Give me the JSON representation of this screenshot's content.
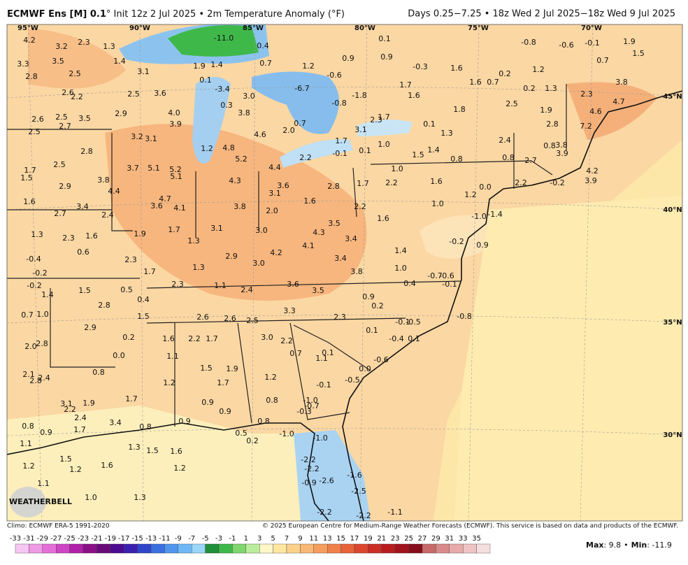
{
  "header": {
    "title_bold": "ECMWF Ens [M] 0.1",
    "title_rest": "° Init 12z 2 Jul 2025 • 2m Temperature Anomaly (°F)",
    "valid": "Days 0.25−7.25 • 18z Wed 2 Jul 2025−18z Wed 9 Jul 2025"
  },
  "map": {
    "lon_labels": [
      "95°W",
      "90°W",
      "85°W",
      "80°W",
      "75°W",
      "70°W"
    ],
    "lat_labels": [
      "45°N",
      "40°N",
      "35°N",
      "30°N"
    ],
    "logo": "WEATHERBELL",
    "values": [
      "4.2",
      "3.2",
      "2.3",
      "1.3",
      "3.3",
      "3.5",
      "1.4",
      "2.8",
      "2.5",
      "3.1",
      "2.6",
      "2.2",
      "2.5",
      "3.6",
      "1.9",
      "1.4",
      "0.1",
      "-3.4",
      "3.0",
      "-6.7",
      "1.2",
      "-0.6",
      "-1.8",
      "-0.8",
      "2.6",
      "2.5",
      "2.7",
      "3.5",
      "2.5",
      "2.9",
      "4.0",
      "3.9",
      "0.3",
      "3.8",
      "4.6",
      "2.0",
      "0.7",
      "0.9",
      "0.9",
      "-0.3",
      "1.6",
      "1.7",
      "1.6",
      "1.6",
      "0.7",
      "0.2",
      "1.2",
      "0.2",
      "1.3",
      "2.3",
      "3.8",
      "4.7",
      "4.6",
      "7.2",
      "2.5",
      "1.9",
      "2.8",
      "1.8",
      "1.7",
      "2.3",
      "3.1",
      "0.1",
      "1.3",
      "2.4",
      "0.8",
      "3.8",
      "3.9",
      "2.7",
      "0.8",
      "2.8",
      "3.2",
      "3.1",
      "1.2",
      "4.8",
      "5.2",
      "1.7",
      "-0.1",
      "0.1",
      "1.0",
      "1.5",
      "1.4",
      "0.8",
      "1.0",
      "1.7",
      "1.5",
      "2.5",
      "3.7",
      "5.1",
      "5.2",
      "5.1",
      "4.4",
      "2.2",
      "2.9",
      "3.8",
      "4.4",
      "4.3",
      "3.6",
      "2.8",
      "1.7",
      "2.2",
      "1.6",
      "1.2",
      "0.0",
      "2.2",
      "-0.2",
      "4.2",
      "3.9",
      "1.6",
      "4.7",
      "3.6",
      "4.1",
      "3.4",
      "2.7",
      "3.8",
      "3.1",
      "2.0",
      "1.6",
      "2.2",
      "1.0",
      "-1.0",
      "-1.4",
      "2.4",
      "1.3",
      "2.3",
      "1.6",
      "1.9",
      "1.7",
      "1.3",
      "3.1",
      "3.0",
      "4.3",
      "3.5",
      "3.4",
      "4.1",
      "4.2",
      "1.6",
      "1.4",
      "-0.2",
      "0.9",
      "0.6",
      "-0.4",
      "2.3",
      "3.0",
      "2.9",
      "3.4",
      "1.0",
      "3.8",
      "-0.2",
      "1.7",
      "1.3",
      "-0.6",
      "-0.7",
      "-0.2",
      "1.5",
      "0.5",
      "2.3",
      "1.1",
      "2.4",
      "3.6",
      "3.5",
      "0.4",
      "-0.1",
      "1.4",
      "2.8",
      "0.4",
      "0.9",
      "0.2",
      "3.3",
      "0.7",
      "1.0",
      "1.5",
      "2.6",
      "2.6",
      "2.5",
      "2.3",
      "-0.8",
      "-0.1",
      "-0.5",
      "2.9",
      "0.1",
      "-0.4",
      "0.1",
      "0.2",
      "1.6",
      "2.2",
      "1.7",
      "3.0",
      "2.2",
      "2.0",
      "2.8",
      "0.0",
      "1.1",
      "0.7",
      "0.1",
      "1.1",
      "-0.6",
      "0.0",
      "1.5",
      "1.9",
      "0.8",
      "2.1",
      "2.8",
      "2.4",
      "1.2",
      "1.7",
      "1.2",
      "-0.1",
      "-0.5",
      "1.7",
      "3.1",
      "2.2",
      "1.9",
      "0.9",
      "0.8",
      "-1.0",
      "-0.7",
      "-0.3",
      "0.9",
      "2.4",
      "3.4",
      "1.7",
      "0.8",
      "0.9",
      "0.8",
      "0.9",
      "0.8",
      "0.5",
      "0.2",
      "-1.0",
      "-1.0",
      "1.1",
      "1.3",
      "1.5",
      "1.6",
      "1.5",
      "1.2",
      "1.2",
      "1.6",
      "1.2",
      "-2.2",
      "-2.2",
      "-0.9",
      "-2.6",
      "-1.6",
      "-2.5",
      "1.1",
      "1.0",
      "1.3",
      "-2.2",
      "-2.2",
      "-1.1",
      "-11.0",
      "0.4",
      "0.7",
      "0.1",
      "-0.8",
      "-0.6",
      "-0.1",
      "1.9",
      "1.5",
      "0.7"
    ]
  },
  "footer": {
    "climo": "Climo: ECMWF ERA-5 1991-2020",
    "copyright": "© 2025 European Centre for Medium-Range Weather Forecasts (ECMWF). This service is based on data and products of the ECMWF.",
    "colorbar_ticks": [
      -33,
      -31,
      -29,
      -27,
      -25,
      -23,
      -21,
      -19,
      -17,
      -15,
      -13,
      -11,
      -9,
      -7,
      -5,
      -3,
      -1,
      1,
      3,
      5,
      7,
      9,
      11,
      13,
      15,
      17,
      19,
      21,
      23,
      25,
      27,
      29,
      31,
      33,
      35
    ],
    "max_label": "Max",
    "max_value": ": 9.8",
    "separator": "•",
    "min_label": "Min",
    "min_value": ": -11.9"
  }
}
